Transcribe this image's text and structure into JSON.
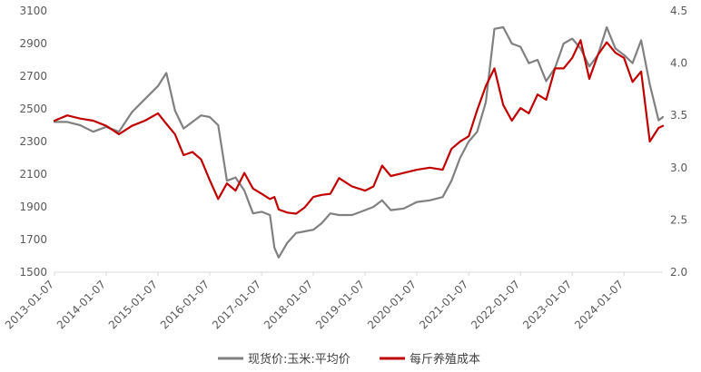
{
  "chart_data": {
    "type": "line",
    "title": "",
    "xlabel": "",
    "ylabel": "",
    "y_left": {
      "range": [
        1500,
        3100
      ],
      "ticks": [
        "1500",
        "1700",
        "1900",
        "2100",
        "2300",
        "2500",
        "2700",
        "2900",
        "3100"
      ]
    },
    "y_right": {
      "range": [
        2.0,
        4.5
      ],
      "ticks": [
        "2.0",
        "2.5",
        "3.0",
        "3.5",
        "4.0",
        "4.5"
      ]
    },
    "x_ticks": [
      "2013-01-07",
      "2014-01-07",
      "2015-01-07",
      "2016-01-07",
      "2017-01-07",
      "2018-01-07",
      "2019-01-07",
      "2020-01-07",
      "2021-01-07",
      "2022-01-07",
      "2023-01-07",
      "2024-01-07"
    ],
    "x_range": [
      "2013-01-07",
      "2024-10-07"
    ],
    "grid": false,
    "legend_position": "bottom",
    "series": [
      {
        "name": "现货价:玉米:平均价",
        "axis": "left",
        "color": "#808080",
        "x": [
          "2013-01-07",
          "2013-04-07",
          "2013-07-07",
          "2013-10-07",
          "2014-01-07",
          "2014-04-07",
          "2014-07-07",
          "2014-10-07",
          "2015-01-07",
          "2015-03-07",
          "2015-05-07",
          "2015-07-07",
          "2015-09-07",
          "2015-11-07",
          "2016-01-07",
          "2016-03-07",
          "2016-05-07",
          "2016-07-07",
          "2016-09-07",
          "2016-11-07",
          "2017-01-07",
          "2017-03-07",
          "2017-04-07",
          "2017-05-07",
          "2017-07-07",
          "2017-09-07",
          "2017-11-07",
          "2018-01-07",
          "2018-03-07",
          "2018-05-07",
          "2018-07-07",
          "2018-10-07",
          "2019-01-07",
          "2019-03-07",
          "2019-05-07",
          "2019-07-07",
          "2019-10-07",
          "2020-01-07",
          "2020-04-07",
          "2020-07-07",
          "2020-09-07",
          "2020-11-07",
          "2021-01-07",
          "2021-03-07",
          "2021-05-07",
          "2021-07-07",
          "2021-09-07",
          "2021-11-07",
          "2022-01-07",
          "2022-03-07",
          "2022-05-07",
          "2022-07-07",
          "2022-09-07",
          "2022-11-07",
          "2023-01-07",
          "2023-03-07",
          "2023-05-07",
          "2023-07-07",
          "2023-09-07",
          "2023-11-07",
          "2024-01-07",
          "2024-03-07",
          "2024-05-07",
          "2024-07-07",
          "2024-09-07",
          "2024-10-07"
        ],
        "values": [
          2420,
          2420,
          2400,
          2360,
          2390,
          2360,
          2480,
          2560,
          2640,
          2720,
          2490,
          2380,
          2420,
          2460,
          2450,
          2400,
          2060,
          2080,
          2000,
          1860,
          1870,
          1850,
          1650,
          1590,
          1680,
          1740,
          1750,
          1760,
          1800,
          1860,
          1850,
          1850,
          1880,
          1900,
          1940,
          1880,
          1890,
          1930,
          1940,
          1960,
          2060,
          2200,
          2300,
          2360,
          2540,
          2990,
          3000,
          2900,
          2880,
          2780,
          2800,
          2670,
          2750,
          2900,
          2930,
          2870,
          2760,
          2830,
          3000,
          2870,
          2830,
          2780,
          2920,
          2650,
          2430,
          2450
        ]
      },
      {
        "name": "每斤养殖成本",
        "axis": "right",
        "color": "#c00000",
        "x": [
          "2013-01-07",
          "2013-04-07",
          "2013-07-07",
          "2013-10-07",
          "2014-01-07",
          "2014-04-07",
          "2014-07-07",
          "2014-10-07",
          "2015-01-07",
          "2015-03-07",
          "2015-05-07",
          "2015-07-07",
          "2015-09-07",
          "2015-11-07",
          "2016-01-07",
          "2016-03-07",
          "2016-05-07",
          "2016-07-07",
          "2016-09-07",
          "2016-11-07",
          "2017-01-07",
          "2017-03-07",
          "2017-04-07",
          "2017-05-07",
          "2017-07-07",
          "2017-09-07",
          "2017-11-07",
          "2018-01-07",
          "2018-03-07",
          "2018-05-07",
          "2018-07-07",
          "2018-10-07",
          "2019-01-07",
          "2019-03-07",
          "2019-05-07",
          "2019-07-07",
          "2019-10-07",
          "2020-01-07",
          "2020-04-07",
          "2020-07-07",
          "2020-09-07",
          "2020-11-07",
          "2021-01-07",
          "2021-03-07",
          "2021-05-07",
          "2021-07-07",
          "2021-09-07",
          "2021-11-07",
          "2022-01-07",
          "2022-03-07",
          "2022-05-07",
          "2022-07-07",
          "2022-09-07",
          "2022-11-07",
          "2023-01-07",
          "2023-03-07",
          "2023-05-07",
          "2023-07-07",
          "2023-09-07",
          "2023-11-07",
          "2024-01-07",
          "2024-03-07",
          "2024-05-07",
          "2024-07-07",
          "2024-09-07",
          "2024-10-07"
        ],
        "values": [
          3.45,
          3.5,
          3.47,
          3.45,
          3.4,
          3.32,
          3.4,
          3.45,
          3.52,
          3.42,
          3.32,
          3.12,
          3.15,
          3.08,
          2.88,
          2.7,
          2.85,
          2.78,
          2.95,
          2.8,
          2.75,
          2.7,
          2.72,
          2.6,
          2.57,
          2.56,
          2.62,
          2.72,
          2.74,
          2.75,
          2.9,
          2.82,
          2.78,
          2.82,
          3.02,
          2.92,
          2.95,
          2.98,
          3.0,
          2.98,
          3.18,
          3.25,
          3.3,
          3.55,
          3.78,
          3.95,
          3.6,
          3.45,
          3.57,
          3.52,
          3.7,
          3.65,
          3.95,
          3.95,
          4.05,
          4.22,
          3.85,
          4.08,
          4.2,
          4.1,
          4.05,
          3.82,
          3.92,
          3.25,
          3.38,
          3.4
        ]
      }
    ]
  }
}
